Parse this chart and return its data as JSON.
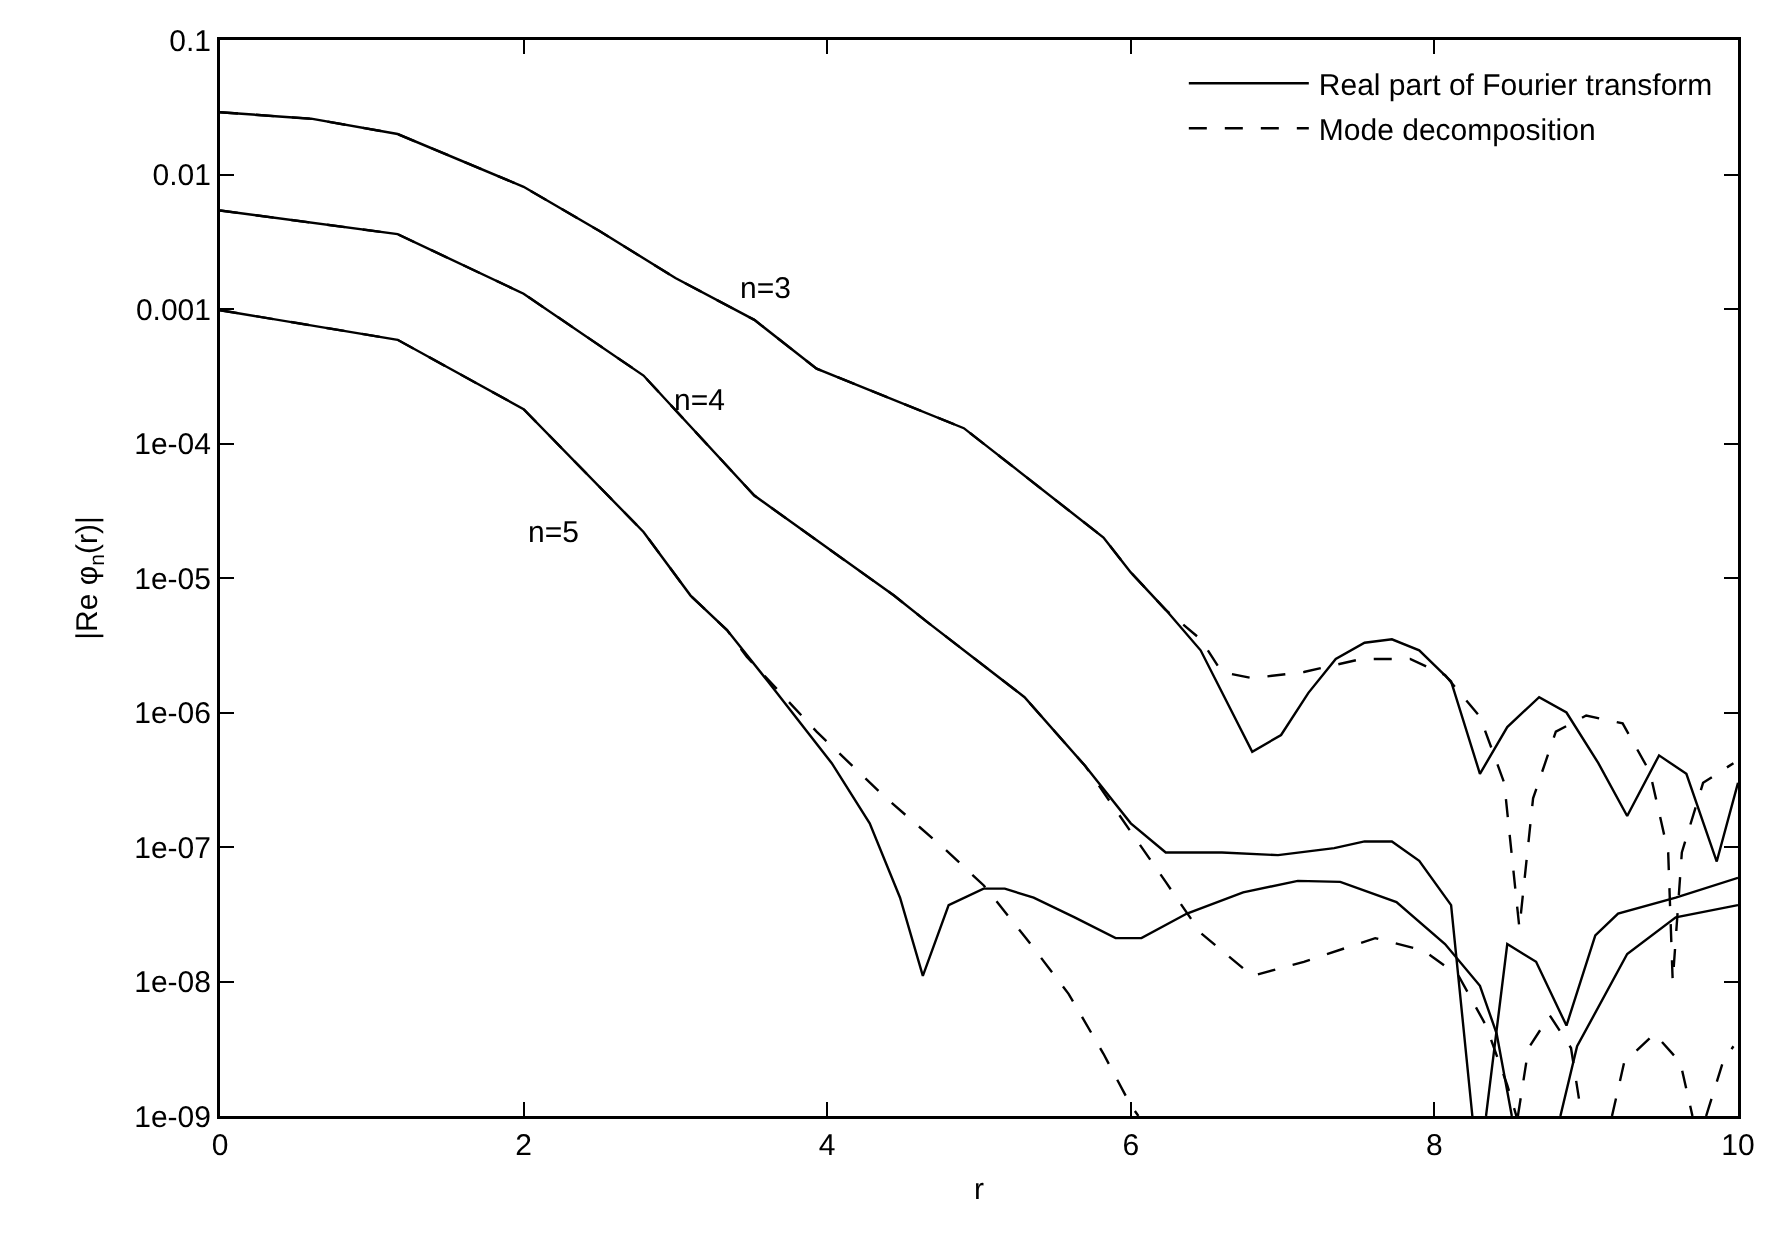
{
  "chart_data": {
    "type": "line",
    "xlabel": "r",
    "ylabel": "|Re φ$_{n}$(r)|",
    "log": "y",
    "legend": "top right",
    "xlim": [
      0,
      10
    ],
    "xticks": [
      0,
      2,
      4,
      6,
      8,
      10
    ],
    "ylim": [
      1e-09,
      0.1
    ],
    "yticks": [
      0.1,
      0.01,
      0.001,
      {
        "value": 0.0001,
        "label": "1e-04"
      },
      {
        "value": 1e-05,
        "label": "1e-05"
      },
      {
        "value": 1e-06,
        "label": "1e-06"
      },
      {
        "value": 1e-07,
        "label": "1e-07"
      },
      {
        "value": 1e-08,
        "label": "1e-08"
      },
      {
        "value": 1e-09,
        "label": "1e-09"
      }
    ],
    "annotations": [
      "n=3",
      "n=4",
      "n=5"
    ],
    "series": [
      {
        "name": "Real part of Fourier transform",
        "color": "#000000",
        "line_style": "solid",
        "x": [
          0,
          0.6,
          1.17,
          2.0,
          2.5,
          3.0,
          3.52,
          3.93,
          4.9,
          5.82,
          6.0,
          6.23,
          6.46,
          6.8,
          6.99,
          7.17,
          7.35,
          7.54,
          7.72,
          7.9,
          8.11,
          8.3,
          8.48,
          8.69,
          8.87,
          9.08,
          9.27,
          9.48,
          9.66,
          9.86,
          10
        ],
        "values": [
          0.029,
          0.026,
          0.02,
          0.0081,
          0.0038,
          0.0017,
          0.00083,
          0.00036,
          0.00013,
          2e-05,
          1.1e-05,
          5.8e-06,
          2.9e-06,
          5.1e-07,
          6.8e-07,
          1.4e-06,
          2.5e-06,
          3.3e-06,
          3.5e-06,
          2.9e-06,
          1.7e-06,
          3.5e-07,
          7.8e-07,
          1.3e-06,
          1e-06,
          4.2e-07,
          1.7e-07,
          4.8e-07,
          3.5e-07,
          7.8e-08,
          3e-07
        ]
      },
      {
        "name": "Mode decomposition",
        "color": "#000000",
        "line_style": "dashed",
        "x": [
          0,
          0.6,
          1.17,
          2.0,
          2.5,
          3.0,
          3.52,
          3.93,
          4.9,
          5.82,
          6.0,
          6.23,
          6.46,
          6.6,
          6.8,
          7.14,
          7.52,
          7.84,
          8.07,
          8.3,
          8.46,
          8.56,
          8.65,
          8.8,
          9.0,
          9.24,
          9.42,
          9.54,
          9.57,
          9.63,
          9.77,
          9.97
        ],
        "values": [
          0.029,
          0.026,
          0.02,
          0.0081,
          0.0038,
          0.0017,
          0.00083,
          0.00036,
          0.00013,
          2e-05,
          1.1e-05,
          5.8e-06,
          3.5e-06,
          2e-06,
          1.8e-06,
          2e-06,
          2.5e-06,
          2.5e-06,
          1.9e-06,
          9.3e-07,
          3e-07,
          2.5e-08,
          2.3e-07,
          7.2e-07,
          9.5e-07,
          8.3e-07,
          3.6e-07,
          9.1e-08,
          1e-08,
          9.1e-08,
          3e-07,
          4.2e-07
        ]
      },
      {
        "color": "#000000",
        "line_style": "solid",
        "x": [
          0,
          1.17,
          2.0,
          2.79,
          3.52,
          4.44,
          4.66,
          5.3,
          5.7,
          6.0,
          6.23,
          6.6,
          6.97,
          7.34,
          7.54,
          7.72,
          7.9,
          8.11,
          8.25,
          8.3,
          8.34,
          8.48,
          8.67,
          8.87,
          9.06,
          9.21,
          9.59,
          10
        ],
        "values": [
          0.0054,
          0.0036,
          0.0013,
          0.00032,
          4.1e-05,
          7.4e-06,
          4.7e-06,
          1.3e-06,
          4e-07,
          1.5e-07,
          9.1e-08,
          9.1e-08,
          8.7e-08,
          9.8e-08,
          1.1e-07,
          1.1e-07,
          7.9e-08,
          3.7e-08,
          1e-09,
          null,
          1e-09,
          1.9e-08,
          1.4e-08,
          4.7e-09,
          2.2e-08,
          3.2e-08,
          4.2e-08,
          5.9e-08
        ]
      },
      {
        "color": "#000000",
        "line_style": "dashed",
        "x": [
          0,
          1.17,
          2.0,
          2.79,
          3.52,
          4.44,
          4.66,
          5.3,
          5.7,
          6.0,
          6.23,
          6.46,
          6.8,
          7.14,
          7.61,
          7.93,
          8.16,
          8.34,
          8.48,
          8.54,
          8.545,
          8.55,
          8.62,
          8.76,
          8.9,
          8.97,
          9.07,
          9.17,
          9.25,
          9.45,
          9.62,
          9.7,
          9.75,
          9.79,
          9.9,
          9.97
        ],
        "values": [
          0.0054,
          0.0036,
          0.0013,
          0.00032,
          4.1e-05,
          7.4e-06,
          4.7e-06,
          1.3e-06,
          4e-07,
          1.3e-07,
          5.5e-08,
          2.3e-08,
          1.1e-08,
          1.4e-08,
          2.1e-08,
          1.7e-08,
          1.1e-08,
          4.7e-09,
          1.7e-09,
          1e-09,
          null,
          1e-09,
          3.2e-09,
          5.6e-09,
          3.2e-09,
          1e-09,
          null,
          1e-09,
          2.5e-09,
          4.1e-09,
          2.5e-09,
          1e-09,
          null,
          1e-09,
          2.5e-09,
          3.3e-09
        ]
      },
      {
        "color": "#000000",
        "line_style": "solid",
        "x": [
          0,
          1.17,
          2.0,
          2.79,
          3.1,
          3.34,
          3.61,
          4.03,
          4.28,
          4.48,
          4.63,
          4.8,
          5.03,
          5.17,
          5.36,
          5.63,
          5.9,
          6.07,
          6.37,
          6.74,
          7.1,
          7.38,
          7.75,
          8.07,
          8.3,
          8.41,
          8.51,
          8.67,
          8.83,
          8.94,
          9.27,
          9.59,
          10
        ],
        "values": [
          0.00098,
          0.00059,
          0.00018,
          2.2e-05,
          7.4e-06,
          4.1e-06,
          1.7e-06,
          4.2e-07,
          1.5e-07,
          4.2e-08,
          1.1e-08,
          3.7e-08,
          4.9e-08,
          4.9e-08,
          4.2e-08,
          3e-08,
          2.1e-08,
          2.1e-08,
          3.2e-08,
          4.6e-08,
          5.6e-08,
          5.5e-08,
          3.9e-08,
          1.9e-08,
          9.3e-09,
          4.1e-09,
          1e-09,
          null,
          1e-09,
          3.3e-09,
          1.6e-08,
          3e-08,
          3.7e-08
        ]
      },
      {
        "color": "#000000",
        "line_style": "dashed",
        "x": [
          0,
          1.17,
          2.0,
          2.79,
          3.1,
          3.34,
          3.47,
          3.93,
          4.39,
          4.76,
          5.03,
          5.31,
          5.59,
          5.82,
          6.0,
          6.05
        ],
        "values": [
          0.00098,
          0.00059,
          0.00018,
          2.2e-05,
          7.4e-06,
          4.1e-06,
          2.6e-06,
          7.2e-07,
          2.3e-07,
          1e-07,
          5.2e-08,
          2.1e-08,
          8.1e-09,
          2.9e-09,
          1.2e-09,
          1e-09
        ]
      }
    ]
  }
}
